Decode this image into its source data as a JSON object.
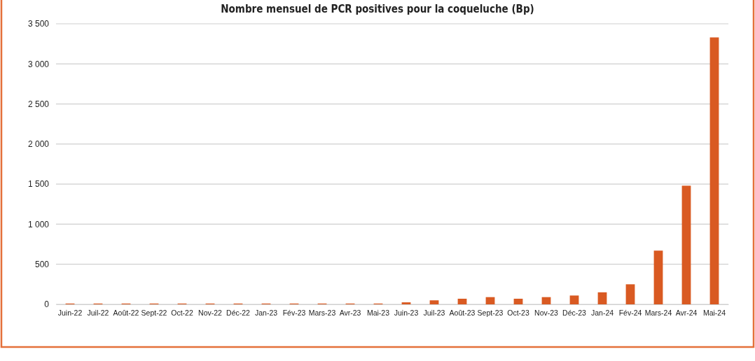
{
  "chart_data": {
    "type": "bar",
    "title": "Nombre mensuel de PCR positives pour la coqueluche (Bp)",
    "categories": [
      "Juin-22",
      "Juil-22",
      "Août-22",
      "Sept-22",
      "Oct-22",
      "Nov-22",
      "Déc-22",
      "Jan-23",
      "Fév-23",
      "Mars-23",
      "Avr-23",
      "Mai-23",
      "Juin-23",
      "Juil-23",
      "Août-23",
      "Sept-23",
      "Oct-23",
      "Nov-23",
      "Déc-23",
      "Jan-24",
      "Fév-24",
      "Mars-24",
      "Avr-24",
      "Mai-24"
    ],
    "values": [
      10,
      10,
      10,
      10,
      10,
      10,
      10,
      10,
      10,
      10,
      10,
      10,
      25,
      50,
      70,
      90,
      70,
      90,
      110,
      150,
      250,
      670,
      1480,
      3330
    ],
    "color": "#d95a22",
    "ylim": [
      0,
      3500
    ],
    "yticks": [
      0,
      500,
      {
        "value": 1000,
        "label": "1 000"
      },
      {
        "value": 1500,
        "label": "1 500"
      },
      {
        "value": 2000,
        "label": "2 000"
      },
      {
        "value": 2500,
        "label": "2 500"
      },
      {
        "value": 3000,
        "label": "3 000"
      },
      {
        "value": 3500,
        "label": "3 500"
      }
    ],
    "grid": "y"
  }
}
